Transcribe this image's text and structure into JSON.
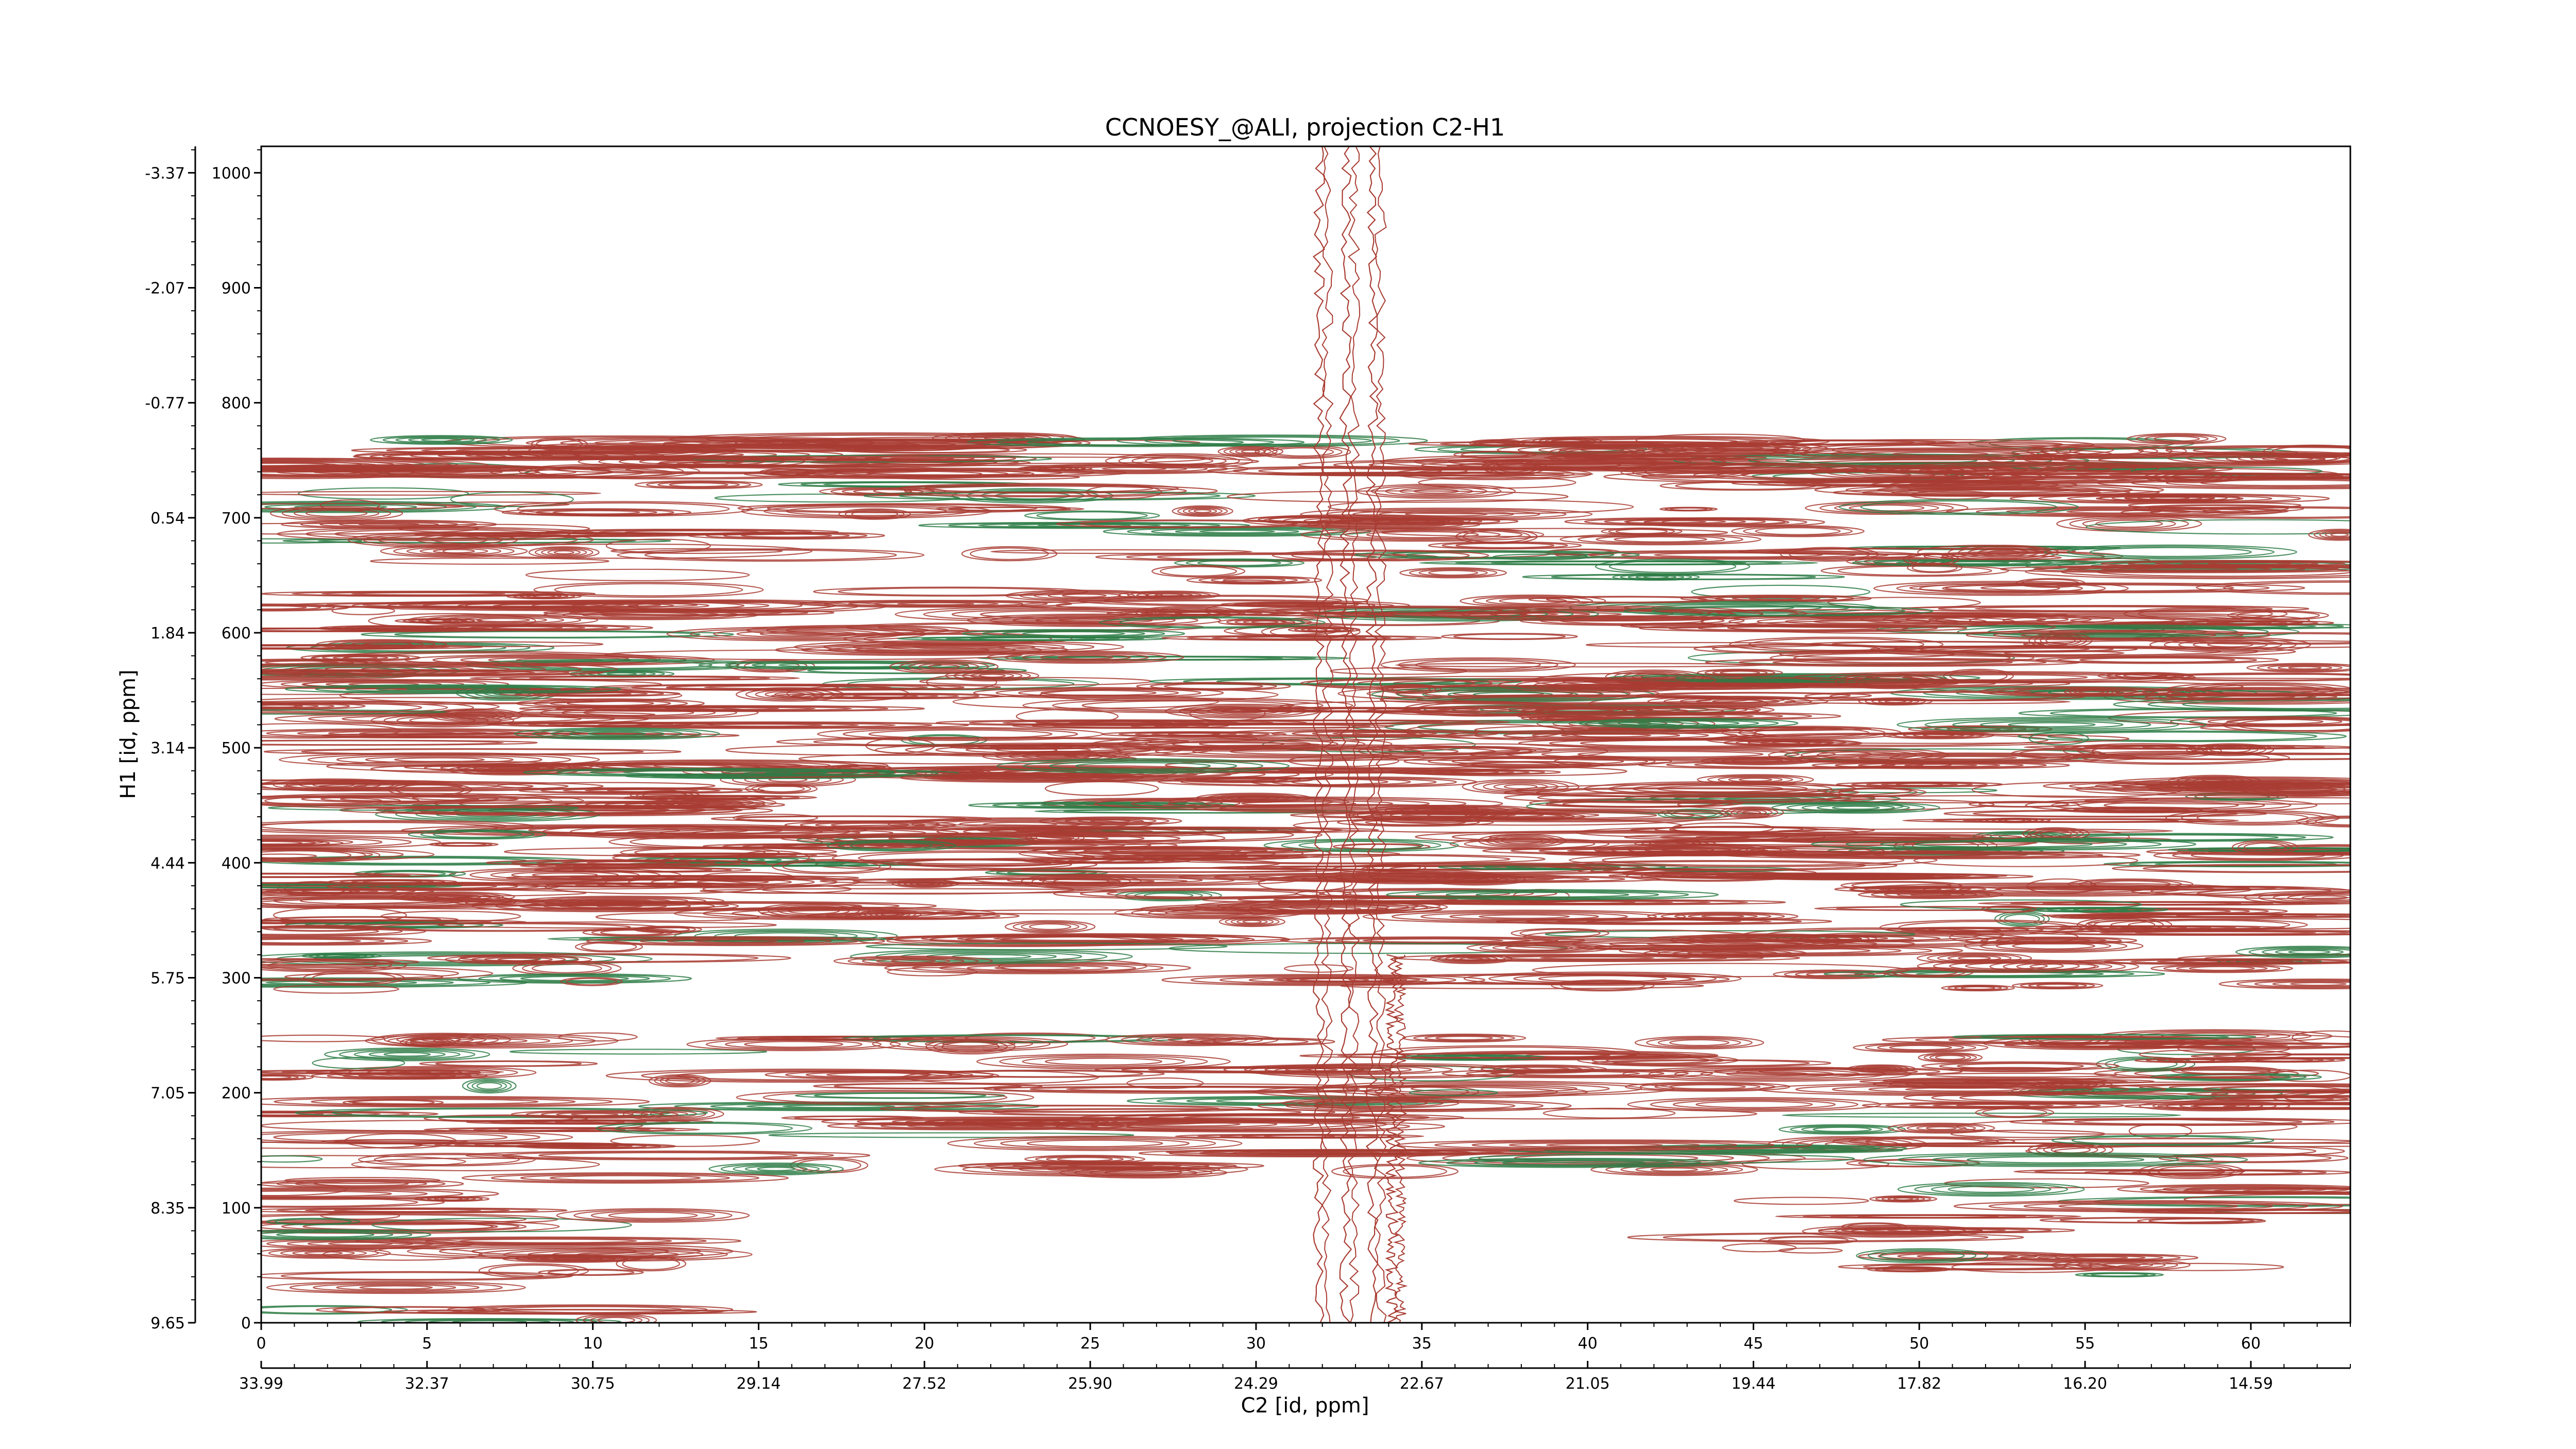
{
  "chart_data": {
    "type": "heatmap",
    "subtype": "2d-nmr-contour",
    "title": "CCNOESY_@ALI, projection C2-H1",
    "xlabel": "C2 [id, ppm]",
    "ylabel": "H1 [id, ppm]",
    "x_index": {
      "ticks": [
        0,
        5,
        10,
        15,
        20,
        25,
        30,
        35,
        40,
        45,
        50,
        55,
        60
      ],
      "labels": [
        "0",
        "5",
        "10",
        "15",
        "20",
        "25",
        "30",
        "35",
        "40",
        "45",
        "50",
        "55",
        "60"
      ],
      "range": [
        0,
        63
      ]
    },
    "x_ppm": {
      "ticks": [
        0,
        5,
        10,
        15,
        20,
        25,
        30,
        35,
        40,
        45,
        50,
        55,
        60
      ],
      "labels": [
        "33.99",
        "32.37",
        "30.75",
        "29.14",
        "27.52",
        "25.90",
        "24.29",
        "22.67",
        "21.05",
        "19.44",
        "17.82",
        "16.20",
        "14.59"
      ]
    },
    "y_index": {
      "ticks": [
        0,
        100,
        200,
        300,
        400,
        500,
        600,
        700,
        800,
        900,
        1000
      ],
      "labels": [
        "0",
        "100",
        "200",
        "300",
        "400",
        "500",
        "600",
        "700",
        "800",
        "900",
        "1000"
      ],
      "range": [
        0,
        1023
      ]
    },
    "y_ppm": {
      "ticks": [
        0,
        100,
        200,
        300,
        400,
        500,
        600,
        700,
        800,
        900,
        1000
      ],
      "labels": [
        "9.65",
        "8.35",
        "7.05",
        "5.75",
        "4.44",
        "3.14",
        "1.84",
        "0.54",
        "-0.77",
        "-2.07",
        "-3.37"
      ]
    },
    "colors": {
      "positive": "#a83c32",
      "negative": "#2e7d46"
    },
    "bands": [
      {
        "y": [
          735,
          770
        ],
        "x": [
          0,
          63
        ],
        "density": 0.7
      },
      {
        "y": [
          620,
          735
        ],
        "x": [
          0,
          63
        ],
        "density": 1.0
      },
      {
        "y": [
          555,
          620
        ],
        "x": [
          0,
          63
        ],
        "density": 0.8
      },
      {
        "y": [
          485,
          555
        ],
        "x": [
          0,
          63
        ],
        "density": 0.9
      },
      {
        "y": [
          440,
          485
        ],
        "x": [
          0,
          63
        ],
        "density": 0.6
      },
      {
        "y": [
          375,
          440
        ],
        "x": [
          0,
          63
        ],
        "density": 1.0
      },
      {
        "y": [
          330,
          375
        ],
        "x": [
          0,
          63
        ],
        "density": 0.5
      },
      {
        "y": [
          290,
          330
        ],
        "x": [
          0,
          63
        ],
        "density": 0.3
      },
      {
        "y": [
          185,
          250
        ],
        "x": [
          0,
          63
        ],
        "density": 0.5
      },
      {
        "y": [
          130,
          185
        ],
        "x": [
          0,
          63
        ],
        "density": 0.45
      },
      {
        "y": [
          0,
          130
        ],
        "x": [
          0,
          12
        ],
        "density": 0.9
      },
      {
        "y": [
          40,
          130
        ],
        "x": [
          45,
          63
        ],
        "density": 0.5
      },
      {
        "y": [
          190,
          250
        ],
        "x": [
          50,
          63
        ],
        "density": 0.6
      }
    ],
    "vertical_streaks": [
      {
        "x": 31.9,
        "y": [
          0,
          1023
        ]
      },
      {
        "x": 32.7,
        "y": [
          0,
          1023
        ]
      },
      {
        "x": 33.5,
        "y": [
          0,
          1023
        ]
      },
      {
        "x": 34.1,
        "y": [
          0,
          320
        ]
      }
    ]
  }
}
